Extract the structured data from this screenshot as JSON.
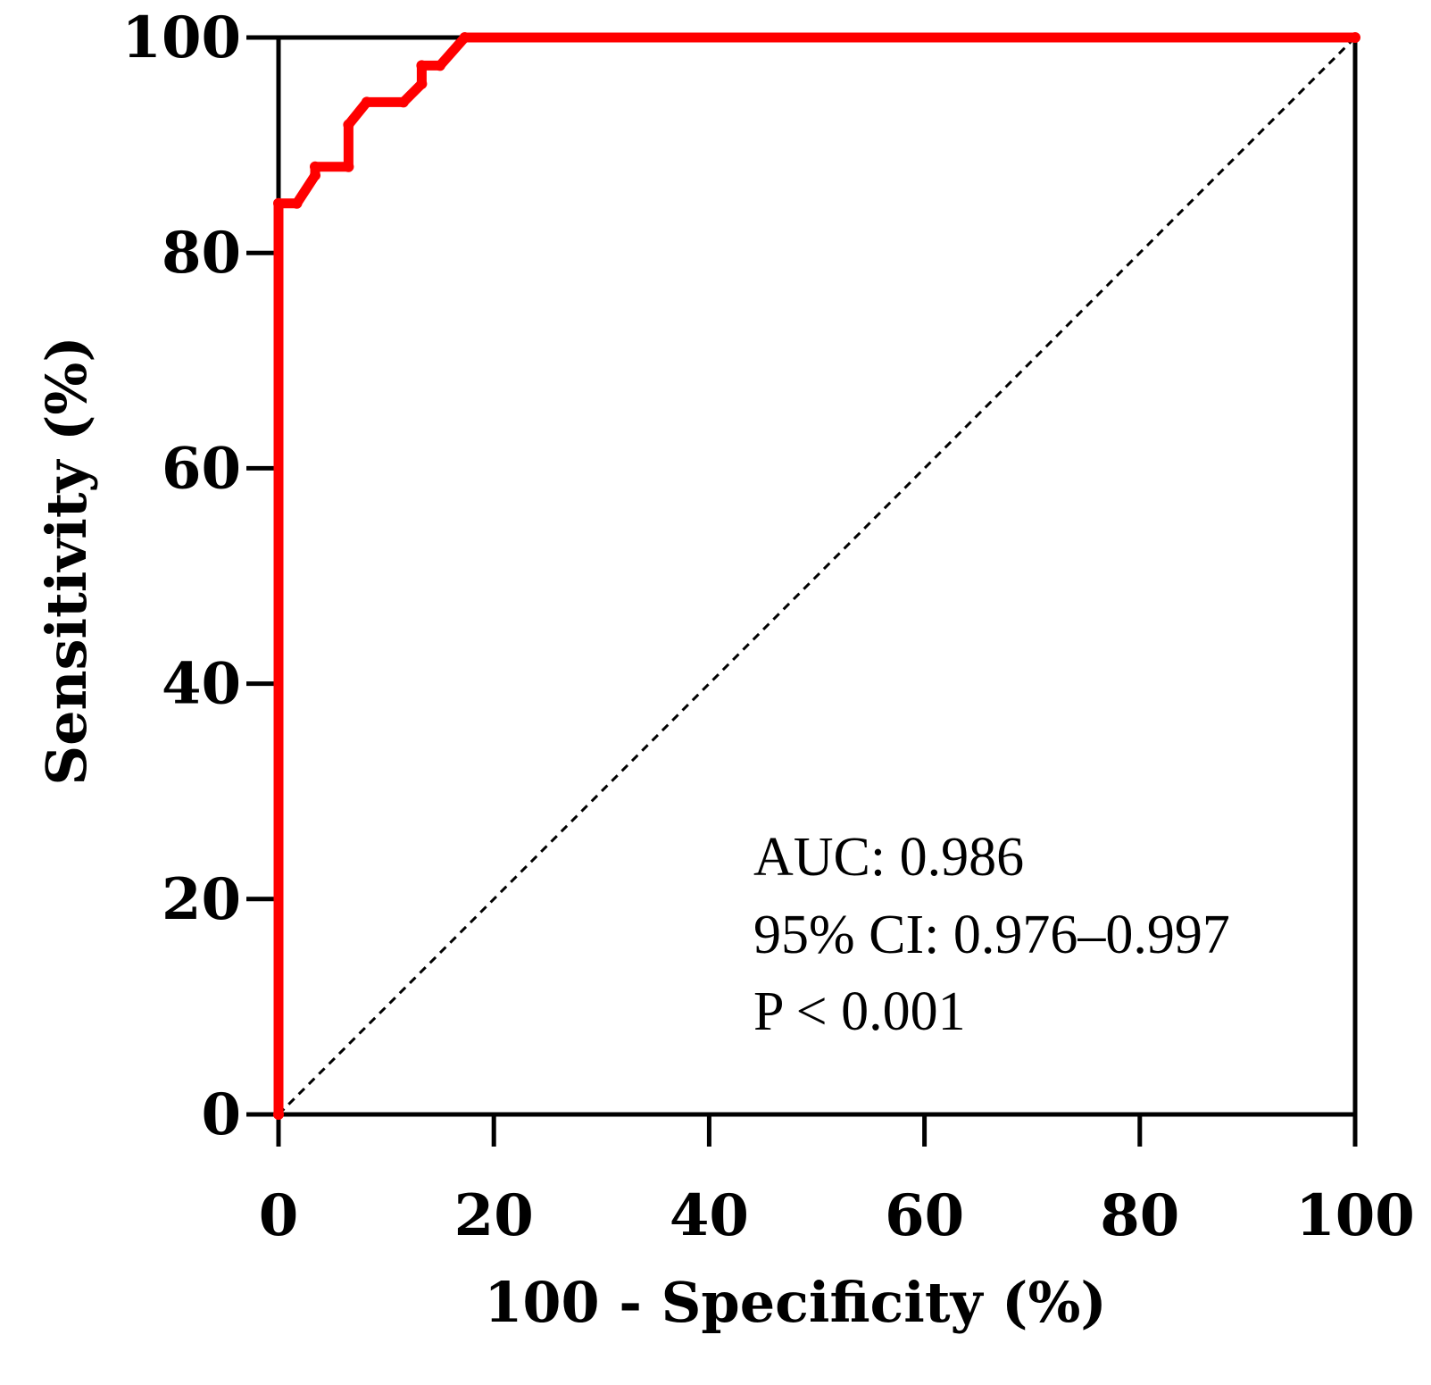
{
  "chart_data": {
    "type": "line",
    "title": "",
    "xlabel": "100 - Specificity (%)",
    "ylabel": "Sensitivity (%)",
    "xlim": [
      0,
      100
    ],
    "ylim": [
      0,
      100
    ],
    "xticks": [
      "0",
      "20",
      "40",
      "60",
      "80",
      "100"
    ],
    "yticks": [
      "0",
      "20",
      "40",
      "60",
      "80",
      "100"
    ],
    "series": [
      {
        "name": "ROC curve",
        "color": "#ff0000",
        "x": [
          0,
          0,
          1.7,
          3.4,
          3.4,
          6.5,
          6.5,
          8.2,
          11.6,
          13.3,
          13.3,
          15.0,
          17.3,
          100
        ],
        "y": [
          0,
          84.6,
          84.6,
          87.2,
          88.0,
          88.0,
          91.9,
          94.0,
          94.0,
          95.7,
          97.4,
          97.4,
          100,
          100
        ]
      },
      {
        "name": "Reference line",
        "color": "#000000",
        "style": "dashed",
        "x": [
          0,
          100
        ],
        "y": [
          0,
          100
        ]
      }
    ],
    "annotations": [
      "AUC: 0.986",
      "95% CI: 0.976–0.997",
      "P < 0.001"
    ]
  }
}
